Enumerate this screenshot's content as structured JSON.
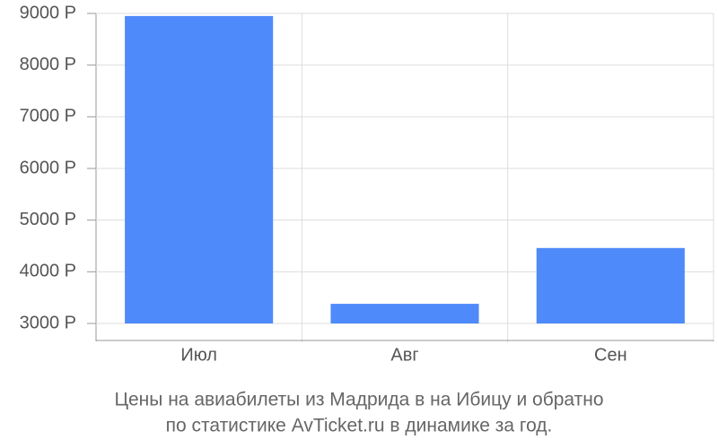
{
  "chart_data": {
    "type": "bar",
    "caption_lines": [
      "Цены на авиабилеты из Мадрида в на Ибицу и обратно",
      "по статистике AvTicket.ru в динамике за год."
    ],
    "categories": [
      "Июл",
      "Авг",
      "Сен"
    ],
    "values": [
      8950,
      3380,
      4460
    ],
    "color": "#4e8af9",
    "ylim": [
      3000,
      9000
    ],
    "yticks": [
      {
        "value": 3000,
        "label": "3000 Р"
      },
      {
        "value": 4000,
        "label": "4000 Р"
      },
      {
        "value": 5000,
        "label": "5000 Р"
      },
      {
        "value": 6000,
        "label": "6000 Р"
      },
      {
        "value": 7000,
        "label": "7000 Р"
      },
      {
        "value": 8000,
        "label": "8000 Р"
      },
      {
        "value": 9000,
        "label": "9000 Р"
      }
    ],
    "grid": true
  }
}
